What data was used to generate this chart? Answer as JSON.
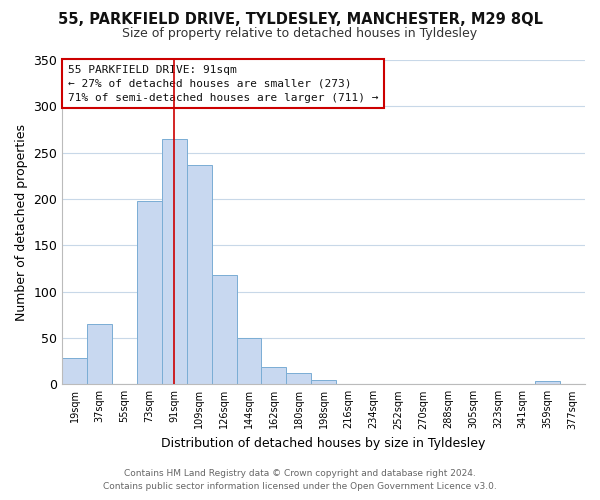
{
  "title": "55, PARKFIELD DRIVE, TYLDESLEY, MANCHESTER, M29 8QL",
  "subtitle": "Size of property relative to detached houses in Tyldesley",
  "xlabel": "Distribution of detached houses by size in Tyldesley",
  "ylabel": "Number of detached properties",
  "bar_color": "#c8d8f0",
  "bar_edge_color": "#7aadd4",
  "annotation_box_edge": "#cc0000",
  "annotation_line1": "55 PARKFIELD DRIVE: 91sqm",
  "annotation_line2": "← 27% of detached houses are smaller (273)",
  "annotation_line3": "71% of semi-detached houses are larger (711) →",
  "xlabels": [
    "19sqm",
    "37sqm",
    "55sqm",
    "73sqm",
    "91sqm",
    "109sqm",
    "126sqm",
    "144sqm",
    "162sqm",
    "180sqm",
    "198sqm",
    "216sqm",
    "234sqm",
    "252sqm",
    "270sqm",
    "288sqm",
    "305sqm",
    "323sqm",
    "341sqm",
    "359sqm",
    "377sqm"
  ],
  "bar_heights": [
    28,
    65,
    0,
    198,
    265,
    237,
    118,
    50,
    19,
    12,
    5,
    0,
    0,
    0,
    0,
    0,
    0,
    0,
    0,
    4,
    0
  ],
  "ylim": [
    0,
    350
  ],
  "yticks": [
    0,
    50,
    100,
    150,
    200,
    250,
    300,
    350
  ],
  "property_bin_index": 4,
  "property_line_color": "#cc0000",
  "footer_line1": "Contains HM Land Registry data © Crown copyright and database right 2024.",
  "footer_line2": "Contains public sector information licensed under the Open Government Licence v3.0.",
  "background_color": "#ffffff",
  "grid_color": "#c8d8e8"
}
